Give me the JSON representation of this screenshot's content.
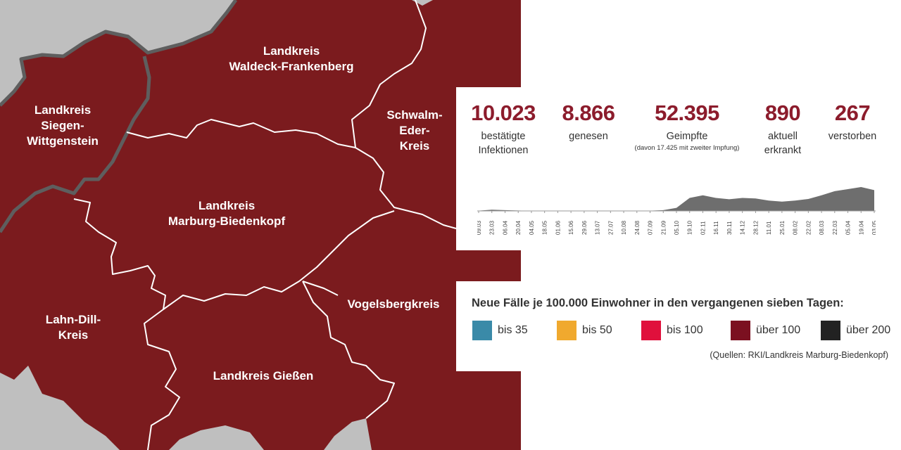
{
  "colors": {
    "region_fill": "#7b1b1e",
    "neighbor_fill": "#bfbfbf",
    "state_border": "#5e5e5e",
    "district_border": "#ffffff",
    "accent_value": "#8c1c2c",
    "timeline_fill": "#6e6e6e"
  },
  "regions": [
    {
      "name": "Landkreis Waldeck-Frankenberg",
      "lines": [
        "Landkreis",
        "Waldeck-Frankenberg"
      ]
    },
    {
      "name": "Landkreis Siegen-Wittgenstein",
      "lines": [
        "Landkreis",
        "Siegen-",
        "Wittgenstein"
      ]
    },
    {
      "name": "Schwalm-Eder-Kreis",
      "lines": [
        "Schwalm-",
        "Eder-",
        "Kreis"
      ]
    },
    {
      "name": "Landkreis Marburg-Biedenkopf",
      "lines": [
        "Landkreis",
        "Marburg-Biedenkopf"
      ]
    },
    {
      "name": "Lahn-Dill-Kreis",
      "lines": [
        "Lahn-Dill-",
        "Kreis"
      ]
    },
    {
      "name": "Vogelsbergkreis",
      "lines": [
        "Vogelsbergkreis"
      ]
    },
    {
      "name": "Landkreis Gießen",
      "lines": [
        "Landkreis Gießen"
      ]
    }
  ],
  "stats": [
    {
      "value": "10.023",
      "label_lines": [
        "bestätigte",
        "Infektionen"
      ],
      "note": ""
    },
    {
      "value": "8.866",
      "label_lines": [
        "genesen"
      ],
      "note": ""
    },
    {
      "value": "52.395",
      "label_lines": [
        "Geimpfte"
      ],
      "note": "(davon 17.425 mit zweiter Impfung)"
    },
    {
      "value": "890",
      "label_lines": [
        "aktuell",
        "erkrankt"
      ],
      "note": ""
    },
    {
      "value": "267",
      "label_lines": [
        "verstorben"
      ],
      "note": ""
    }
  ],
  "timeline": {
    "dates": [
      "09.03",
      "23.03",
      "06.04",
      "20.04",
      "04.05",
      "18.05",
      "01.06",
      "15.06",
      "29.06",
      "13.07",
      "27.07",
      "10.08",
      "24.08",
      "07.09",
      "21.09",
      "05.10",
      "19.10",
      "02.11",
      "16.11",
      "30.11",
      "14.12",
      "28.12",
      "11.01",
      "25.01",
      "08.02",
      "22.02",
      "08.03",
      "22.03",
      "05.04",
      "19.04",
      "03.05"
    ],
    "active_cases": [
      5,
      25,
      15,
      8,
      2,
      0,
      0,
      0,
      0,
      0,
      0,
      3,
      5,
      6,
      15,
      60,
      250,
      300,
      250,
      225,
      250,
      240,
      200,
      180,
      200,
      230,
      300,
      380,
      420,
      460,
      400
    ]
  },
  "legend": {
    "title": "Neue Fälle je 100.000 Einwohner in den vergangenen sieben Tagen:",
    "items": [
      {
        "label": "bis 35",
        "color": "#3a8aa8"
      },
      {
        "label": "bis 50",
        "color": "#f0a92e"
      },
      {
        "label": "bis 100",
        "color": "#e0103c"
      },
      {
        "label": "über 100",
        "color": "#7b1020"
      },
      {
        "label": "über 200",
        "color": "#222222"
      }
    ],
    "source": "(Quellen: RKI/Landkreis Marburg-Biedenkopf)"
  }
}
